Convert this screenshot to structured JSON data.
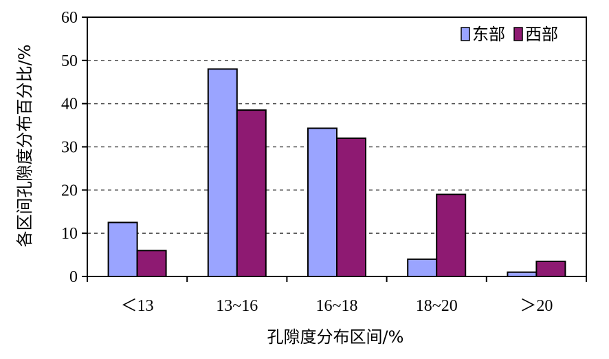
{
  "chart_data": {
    "type": "bar",
    "categories": [
      "＜13",
      "13~16",
      "16~18",
      "18~20",
      "＞20"
    ],
    "series": [
      {
        "name": "东部",
        "values": [
          12.5,
          48,
          34.3,
          4,
          1
        ],
        "color": "#9aa4ff"
      },
      {
        "name": "西部",
        "values": [
          6,
          38.5,
          32,
          19,
          3.5
        ],
        "color": "#8e1a72"
      }
    ],
    "ylim": [
      0,
      60
    ],
    "yticks": [
      0,
      10,
      20,
      30,
      40,
      50,
      60
    ],
    "xlabel": "孔隙度分布区间/%",
    "ylabel": "各区间孔隙度分布百分比/%",
    "grid": true,
    "legend_position": "top-right"
  }
}
